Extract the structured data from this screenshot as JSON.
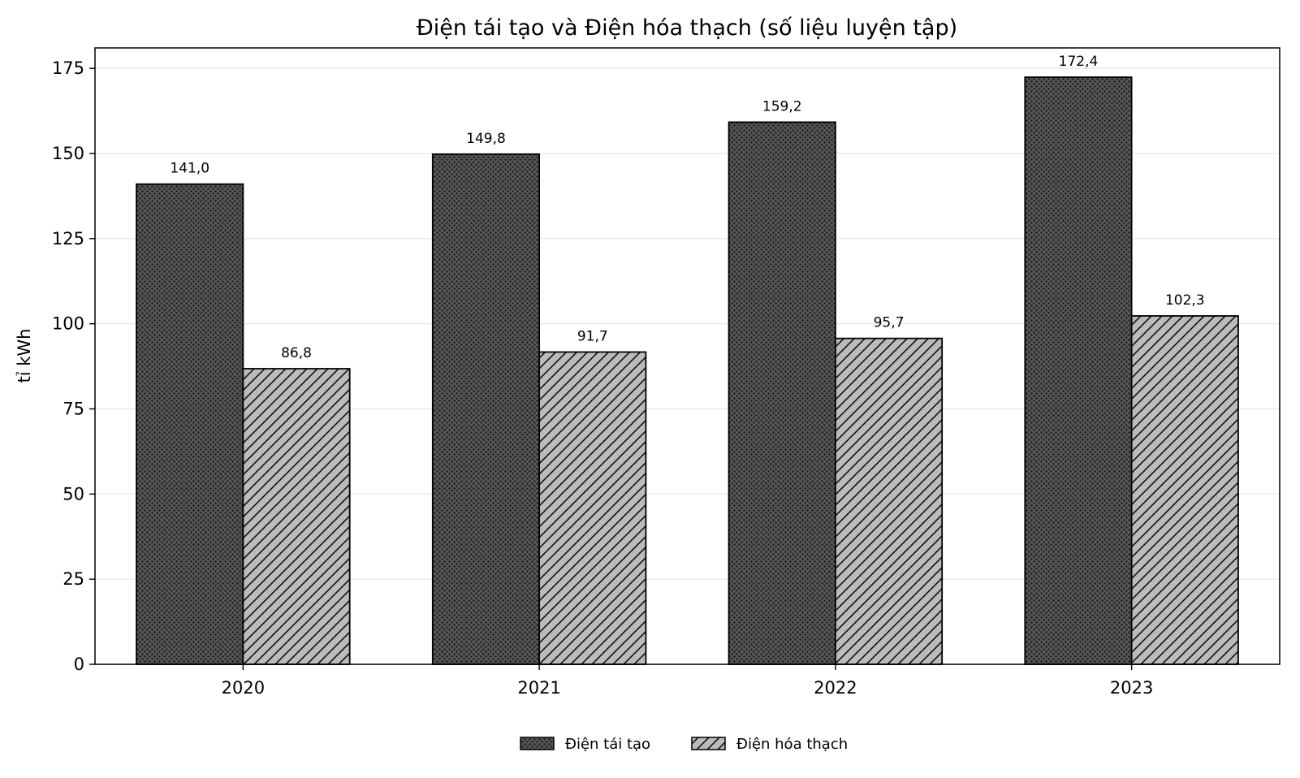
{
  "chart_data": {
    "type": "bar",
    "title": "Điện tái tạo và Điện hóa thạch (số liệu luyện tập)",
    "xlabel": "",
    "ylabel": "tỉ kWh",
    "categories": [
      "2020",
      "2021",
      "2022",
      "2023"
    ],
    "series": [
      {
        "name": "Điện tái tạo",
        "values": [
          141.0,
          149.8,
          159.2,
          172.4
        ],
        "labels": [
          "141,0",
          "149,8",
          "159,2",
          "172,4"
        ],
        "color": "#555555",
        "pattern": "dots"
      },
      {
        "name": "Điện hóa thạch",
        "values": [
          86.8,
          91.7,
          95.7,
          102.3
        ],
        "labels": [
          "86,8",
          "91,7",
          "95,7",
          "102,3"
        ],
        "color": "#bbbbbb",
        "pattern": "diagonal-hatch"
      }
    ],
    "ylim": [
      0,
      181
    ],
    "yticks": [
      0,
      25,
      50,
      75,
      100,
      125,
      150,
      175
    ],
    "grid": "horizontal",
    "legend_position": "bottom-center"
  }
}
